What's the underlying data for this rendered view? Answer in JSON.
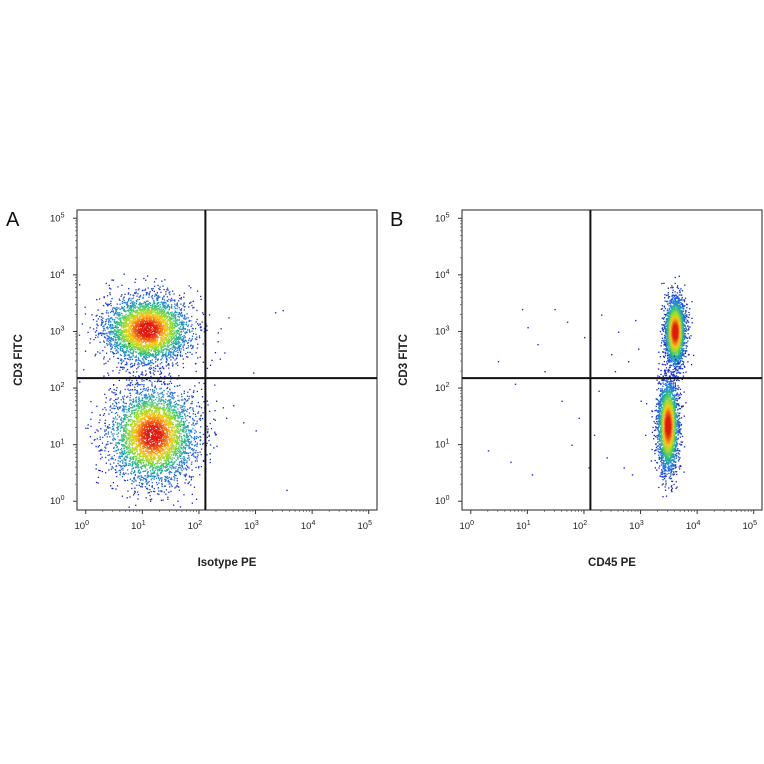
{
  "chart_data": [
    {
      "type": "scatter",
      "subtype": "flow-cytometry-density-dot-plot",
      "panel_label": "A",
      "xlabel": "Isotype PE",
      "ylabel": "CD3 FITC",
      "xscale": "log",
      "yscale": "log",
      "xlim": [
        0.7,
        140000
      ],
      "ylim": [
        0.7,
        140000
      ],
      "x_ticks": [
        {
          "base": "10",
          "exp": "0"
        },
        {
          "base": "10",
          "exp": "1"
        },
        {
          "base": "10",
          "exp": "2"
        },
        {
          "base": "10",
          "exp": "3"
        },
        {
          "base": "10",
          "exp": "4"
        },
        {
          "base": "10",
          "exp": "5"
        }
      ],
      "y_ticks": [
        {
          "base": "10",
          "exp": "0"
        },
        {
          "base": "10",
          "exp": "1"
        },
        {
          "base": "10",
          "exp": "2"
        },
        {
          "base": "10",
          "exp": "3"
        },
        {
          "base": "10",
          "exp": "4"
        },
        {
          "base": "10",
          "exp": "5"
        }
      ],
      "quadrant_gate": {
        "x": 130,
        "y": 150
      },
      "populations": [
        {
          "center_x": 12,
          "center_y": 1100,
          "spread_log_x": 0.38,
          "spread_log_y": 0.3,
          "count": 3600,
          "color": "#e82a10"
        },
        {
          "center_x": 15,
          "center_y": 15,
          "spread_log_x": 0.38,
          "spread_log_y": 0.42,
          "count": 3900,
          "color": "#30c060"
        }
      ],
      "sparse_events": [
        [
          2200,
          2200
        ],
        [
          3000,
          2400
        ],
        [
          900,
          190
        ],
        [
          200,
          60
        ],
        [
          400,
          50
        ],
        [
          600,
          25
        ],
        [
          1000,
          18
        ],
        [
          3500,
          1.6
        ],
        [
          300,
          30
        ],
        [
          150,
          40
        ]
      ],
      "grid": false
    },
    {
      "type": "scatter",
      "subtype": "flow-cytometry-density-dot-plot",
      "panel_label": "B",
      "xlabel": "CD45 PE",
      "ylabel": "CD3 FITC",
      "xscale": "log",
      "yscale": "log",
      "xlim": [
        0.7,
        140000
      ],
      "ylim": [
        0.7,
        140000
      ],
      "x_ticks": [
        {
          "base": "10",
          "exp": "0"
        },
        {
          "base": "10",
          "exp": "1"
        },
        {
          "base": "10",
          "exp": "2"
        },
        {
          "base": "10",
          "exp": "3"
        },
        {
          "base": "10",
          "exp": "4"
        },
        {
          "base": "10",
          "exp": "5"
        }
      ],
      "y_ticks": [
        {
          "base": "10",
          "exp": "0"
        },
        {
          "base": "10",
          "exp": "1"
        },
        {
          "base": "10",
          "exp": "2"
        },
        {
          "base": "10",
          "exp": "3"
        },
        {
          "base": "10",
          "exp": "4"
        },
        {
          "base": "10",
          "exp": "5"
        }
      ],
      "quadrant_gate": {
        "x": 130,
        "y": 150
      },
      "populations": [
        {
          "center_x": 4000,
          "center_y": 1000,
          "spread_log_x": 0.09,
          "spread_log_y": 0.3,
          "count": 2600,
          "color": "#e82a10"
        },
        {
          "center_x": 3000,
          "center_y": 22,
          "spread_log_x": 0.09,
          "spread_log_y": 0.4,
          "count": 2800,
          "color": "#30c060"
        }
      ],
      "sparse_events": [
        [
          8,
          2500
        ],
        [
          10,
          1200
        ],
        [
          15,
          600
        ],
        [
          30,
          2500
        ],
        [
          50,
          1500
        ],
        [
          100,
          800
        ],
        [
          200,
          2000
        ],
        [
          300,
          400
        ],
        [
          400,
          1000
        ],
        [
          600,
          300
        ],
        [
          800,
          1600
        ],
        [
          3,
          300
        ],
        [
          6,
          120
        ],
        [
          20,
          200
        ],
        [
          40,
          60
        ],
        [
          80,
          30
        ],
        [
          150,
          15
        ],
        [
          250,
          6
        ],
        [
          500,
          4
        ],
        [
          700,
          3
        ],
        [
          2,
          8
        ],
        [
          5,
          5
        ],
        [
          12,
          3
        ],
        [
          60,
          10
        ],
        [
          120,
          4
        ],
        [
          180,
          90
        ],
        [
          350,
          200
        ],
        [
          900,
          500
        ],
        [
          1000,
          60
        ],
        [
          1200,
          15
        ]
      ],
      "grid": false
    }
  ]
}
